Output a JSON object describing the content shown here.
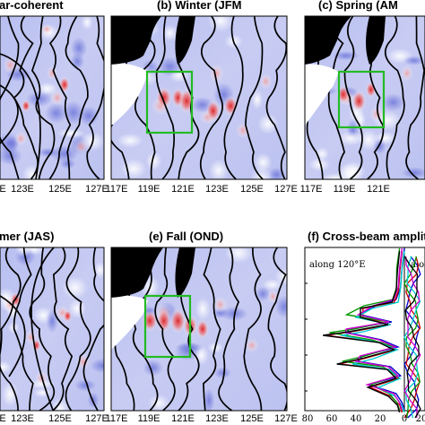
{
  "chart_data": [
    {
      "type": "heatmap",
      "panel": "a",
      "title": "(a) Year-coherent",
      "title_shown": "ar-coherent",
      "xticks": [
        "123E",
        "125E",
        "127E"
      ],
      "xticks_partial_left": "E",
      "colormap": [
        "blue",
        "white",
        "red"
      ]
    },
    {
      "type": "heatmap",
      "panel": "b",
      "title": "(b) Winter (JFM)",
      "title_shown": "(b) Winter (JFM",
      "xticks": [
        "117E",
        "119E",
        "121E",
        "123E",
        "125E",
        "127E"
      ],
      "highlight_box_color": "#22bb22",
      "colormap": [
        "blue",
        "white",
        "red"
      ]
    },
    {
      "type": "heatmap",
      "panel": "c",
      "title": "(c) Spring (AMJ)",
      "title_shown": "(c) Spring (AM",
      "xticks": [
        "117E",
        "119E",
        "121E"
      ],
      "highlight_box_color": "#22bb22",
      "colormap": [
        "blue",
        "white",
        "red"
      ]
    },
    {
      "type": "heatmap",
      "panel": "d",
      "title": "(d) Summer (JAS)",
      "title_shown": "mer (JAS)",
      "xticks": [
        "123E",
        "125E",
        "127E"
      ],
      "xticks_partial_left": "E",
      "colormap": [
        "blue",
        "white",
        "red"
      ]
    },
    {
      "type": "heatmap",
      "panel": "e",
      "title": "(e) Fall (OND)",
      "xticks": [
        "117E",
        "119E",
        "121E",
        "123E",
        "125E",
        "127E"
      ],
      "highlight_box_color": "#22bb22",
      "colormap": [
        "blue",
        "white",
        "red"
      ]
    },
    {
      "type": "line",
      "panel": "f",
      "title": "(f) Cross-beam amplitude",
      "title_shown": "(f) Cross-beam amplit",
      "subplots": [
        "along 120°E",
        "alo"
      ],
      "xticks": [
        "80",
        "60",
        "40",
        "20",
        "0",
        "20"
      ],
      "x_reversed": true,
      "series_colors": [
        "#0000cc",
        "#cc0000",
        "#009900",
        "#00cccc",
        "#cc00cc",
        "#000000"
      ]
    }
  ]
}
